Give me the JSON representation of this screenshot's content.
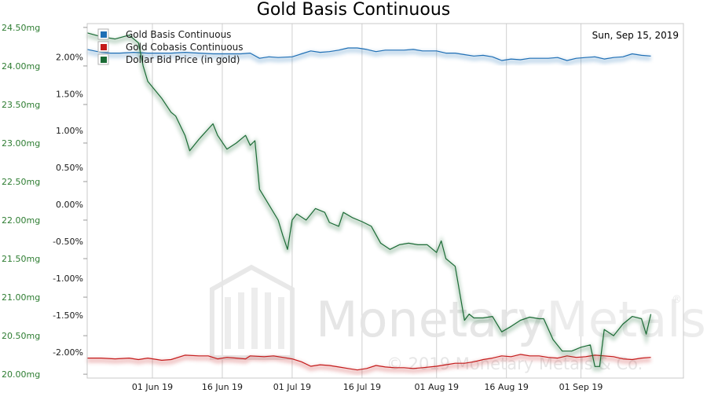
{
  "chart_data": {
    "type": "line",
    "title": "Gold Basis Continuous",
    "date_label": "Sun, Sep 15, 2019",
    "watermark": {
      "brand": "MonetaryMetals",
      "brand_part1": "Monetary",
      "brand_part2": "Metals",
      "registered": "®",
      "copyright": "© 2019 Monetary Metals & Co."
    },
    "x_start": "2019-05-18",
    "x_end": "2019-09-23",
    "x_ticks": [
      {
        "date": "2019-06-01",
        "label": "01 Jun 19"
      },
      {
        "date": "2019-06-16",
        "label": "16 Jun 19"
      },
      {
        "date": "2019-07-01",
        "label": "01 Jul 19"
      },
      {
        "date": "2019-07-16",
        "label": "16 Jul 19"
      },
      {
        "date": "2019-08-01",
        "label": "01 Aug 19"
      },
      {
        "date": "2019-08-16",
        "label": "16 Aug 19"
      },
      {
        "date": "2019-09-01",
        "label": "01 Sep 19"
      }
    ],
    "y_left": {
      "unit": "mg",
      "ylim": [
        19.95,
        24.55
      ],
      "ticks": [
        {
          "value": 20.0,
          "label": "20.00mg"
        },
        {
          "value": 20.5,
          "label": "20.50mg"
        },
        {
          "value": 21.0,
          "label": "21.00mg"
        },
        {
          "value": 21.5,
          "label": "21.50mg"
        },
        {
          "value": 22.0,
          "label": "22.00mg"
        },
        {
          "value": 22.5,
          "label": "22.50mg"
        },
        {
          "value": 23.0,
          "label": "23.00mg"
        },
        {
          "value": 23.5,
          "label": "23.50mg"
        },
        {
          "value": 24.0,
          "label": "24.00mg"
        },
        {
          "value": 24.5,
          "label": "24.50mg"
        }
      ]
    },
    "y_right": {
      "unit": "%",
      "ylim": [
        -2.35,
        2.45
      ],
      "ticks": [
        {
          "value": 2.0,
          "label": "2.00%"
        },
        {
          "value": 1.5,
          "label": "1.50%"
        },
        {
          "value": 1.0,
          "label": "1.00%"
        },
        {
          "value": 0.5,
          "label": "0.50%"
        },
        {
          "value": 0.0,
          "label": "0.00%"
        },
        {
          "value": -0.5,
          "label": "-0.50%"
        },
        {
          "value": -1.0,
          "label": "-1.00%"
        },
        {
          "value": -1.5,
          "label": "-1.50%"
        },
        {
          "value": -2.0,
          "label": "-2.00%"
        }
      ]
    },
    "grid": true,
    "legend_position": "top-left",
    "series": [
      {
        "name": "Gold Basis Continuous",
        "axis": "right",
        "color": "#1f6fb5",
        "points": [
          [
            "2019-05-18",
            2.1
          ],
          [
            "2019-05-21",
            2.06
          ],
          [
            "2019-05-23",
            2.05
          ],
          [
            "2019-05-25",
            2.05
          ],
          [
            "2019-05-28",
            2.06
          ],
          [
            "2019-05-31",
            2.05
          ],
          [
            "2019-06-03",
            2.05
          ],
          [
            "2019-06-05",
            2.05
          ],
          [
            "2019-06-08",
            2.06
          ],
          [
            "2019-06-11",
            2.05
          ],
          [
            "2019-06-14",
            2.04
          ],
          [
            "2019-06-17",
            2.04
          ],
          [
            "2019-06-20",
            2.04
          ],
          [
            "2019-06-22",
            2.05
          ],
          [
            "2019-06-24",
            1.98
          ],
          [
            "2019-06-26",
            2.0
          ],
          [
            "2019-06-28",
            1.99
          ],
          [
            "2019-07-01",
            2.0
          ],
          [
            "2019-07-03",
            2.04
          ],
          [
            "2019-07-05",
            2.08
          ],
          [
            "2019-07-07",
            2.06
          ],
          [
            "2019-07-09",
            2.07
          ],
          [
            "2019-07-11",
            2.09
          ],
          [
            "2019-07-13",
            2.12
          ],
          [
            "2019-07-15",
            2.12
          ],
          [
            "2019-07-17",
            2.1
          ],
          [
            "2019-07-19",
            2.07
          ],
          [
            "2019-07-21",
            2.09
          ],
          [
            "2019-07-23",
            2.09
          ],
          [
            "2019-07-25",
            2.09
          ],
          [
            "2019-07-27",
            2.1
          ],
          [
            "2019-07-29",
            2.08
          ],
          [
            "2019-08-01",
            2.08
          ],
          [
            "2019-08-03",
            2.05
          ],
          [
            "2019-08-05",
            2.05
          ],
          [
            "2019-08-07",
            2.03
          ],
          [
            "2019-08-09",
            2.01
          ],
          [
            "2019-08-11",
            2.02
          ],
          [
            "2019-08-13",
            2.0
          ],
          [
            "2019-08-15",
            1.95
          ],
          [
            "2019-08-17",
            1.97
          ],
          [
            "2019-08-19",
            1.96
          ],
          [
            "2019-08-21",
            1.98
          ],
          [
            "2019-08-23",
            1.98
          ],
          [
            "2019-08-25",
            1.98
          ],
          [
            "2019-08-27",
            1.99
          ],
          [
            "2019-08-29",
            1.95
          ],
          [
            "2019-08-31",
            1.98
          ],
          [
            "2019-09-02",
            1.99
          ],
          [
            "2019-09-04",
            2.0
          ],
          [
            "2019-09-06",
            1.97
          ],
          [
            "2019-09-08",
            1.99
          ],
          [
            "2019-09-10",
            2.0
          ],
          [
            "2019-09-12",
            2.04
          ],
          [
            "2019-09-14",
            2.02
          ],
          [
            "2019-09-16",
            2.01
          ]
        ]
      },
      {
        "name": "Gold Cobasis Continuous",
        "axis": "right",
        "color": "#c41a1a",
        "points": [
          [
            "2019-05-18",
            -2.08
          ],
          [
            "2019-05-21",
            -2.08
          ],
          [
            "2019-05-24",
            -2.09
          ],
          [
            "2019-05-27",
            -2.08
          ],
          [
            "2019-05-29",
            -2.1
          ],
          [
            "2019-05-31",
            -2.08
          ],
          [
            "2019-06-03",
            -2.11
          ],
          [
            "2019-06-05",
            -2.1
          ],
          [
            "2019-06-08",
            -2.04
          ],
          [
            "2019-06-11",
            -2.05
          ],
          [
            "2019-06-13",
            -2.05
          ],
          [
            "2019-06-15",
            -2.09
          ],
          [
            "2019-06-17",
            -2.07
          ],
          [
            "2019-06-19",
            -2.08
          ],
          [
            "2019-06-21",
            -2.09
          ],
          [
            "2019-06-22",
            -2.05
          ],
          [
            "2019-06-25",
            -2.06
          ],
          [
            "2019-06-27",
            -2.05
          ],
          [
            "2019-06-29",
            -2.07
          ],
          [
            "2019-07-01",
            -2.09
          ],
          [
            "2019-07-03",
            -2.13
          ],
          [
            "2019-07-05",
            -2.19
          ],
          [
            "2019-07-07",
            -2.17
          ],
          [
            "2019-07-09",
            -2.18
          ],
          [
            "2019-07-11",
            -2.2
          ],
          [
            "2019-07-13",
            -2.22
          ],
          [
            "2019-07-15",
            -2.24
          ],
          [
            "2019-07-17",
            -2.22
          ],
          [
            "2019-07-19",
            -2.18
          ],
          [
            "2019-07-21",
            -2.2
          ],
          [
            "2019-07-23",
            -2.21
          ],
          [
            "2019-07-25",
            -2.21
          ],
          [
            "2019-07-27",
            -2.22
          ],
          [
            "2019-07-29",
            -2.21
          ],
          [
            "2019-08-01",
            -2.19
          ],
          [
            "2019-08-03",
            -2.17
          ],
          [
            "2019-08-05",
            -2.15
          ],
          [
            "2019-08-07",
            -2.15
          ],
          [
            "2019-08-09",
            -2.13
          ],
          [
            "2019-08-11",
            -2.1
          ],
          [
            "2019-08-13",
            -2.08
          ],
          [
            "2019-08-15",
            -2.05
          ],
          [
            "2019-08-17",
            -2.06
          ],
          [
            "2019-08-19",
            -2.03
          ],
          [
            "2019-08-21",
            -2.05
          ],
          [
            "2019-08-23",
            -2.05
          ],
          [
            "2019-08-25",
            -2.07
          ],
          [
            "2019-08-27",
            -2.08
          ],
          [
            "2019-08-29",
            -2.05
          ],
          [
            "2019-08-31",
            -2.07
          ],
          [
            "2019-09-02",
            -2.06
          ],
          [
            "2019-09-04",
            -2.04
          ],
          [
            "2019-09-06",
            -2.05
          ],
          [
            "2019-09-08",
            -2.06
          ],
          [
            "2019-09-10",
            -2.09
          ],
          [
            "2019-09-12",
            -2.1
          ],
          [
            "2019-09-14",
            -2.08
          ],
          [
            "2019-09-16",
            -2.07
          ]
        ]
      },
      {
        "name": "Dollar Bid Price (in gold)",
        "axis": "left",
        "color": "#1b6b35",
        "points": [
          [
            "2019-05-18",
            24.43
          ],
          [
            "2019-05-21",
            24.38
          ],
          [
            "2019-05-24",
            24.35
          ],
          [
            "2019-05-27",
            24.4
          ],
          [
            "2019-05-29",
            24.3
          ],
          [
            "2019-05-30",
            24.0
          ],
          [
            "2019-05-31",
            23.8
          ],
          [
            "2019-06-03",
            23.58
          ],
          [
            "2019-06-05",
            23.4
          ],
          [
            "2019-06-06",
            23.35
          ],
          [
            "2019-06-08",
            23.1
          ],
          [
            "2019-06-09",
            22.9
          ],
          [
            "2019-06-11",
            23.05
          ],
          [
            "2019-06-14",
            23.25
          ],
          [
            "2019-06-15",
            23.1
          ],
          [
            "2019-06-17",
            22.92
          ],
          [
            "2019-06-19",
            23.0
          ],
          [
            "2019-06-21",
            23.1
          ],
          [
            "2019-06-22",
            22.97
          ],
          [
            "2019-06-23",
            23.03
          ],
          [
            "2019-06-24",
            22.4
          ],
          [
            "2019-06-26",
            22.2
          ],
          [
            "2019-06-28",
            22.0
          ],
          [
            "2019-06-29",
            21.8
          ],
          [
            "2019-06-30",
            21.62
          ],
          [
            "2019-07-01",
            22.0
          ],
          [
            "2019-07-02",
            22.08
          ],
          [
            "2019-07-04",
            22.0
          ],
          [
            "2019-07-06",
            22.15
          ],
          [
            "2019-07-08",
            22.1
          ],
          [
            "2019-07-09",
            21.97
          ],
          [
            "2019-07-11",
            21.92
          ],
          [
            "2019-07-12",
            22.1
          ],
          [
            "2019-07-14",
            22.03
          ],
          [
            "2019-07-16",
            21.98
          ],
          [
            "2019-07-18",
            21.92
          ],
          [
            "2019-07-20",
            21.7
          ],
          [
            "2019-07-22",
            21.62
          ],
          [
            "2019-07-24",
            21.68
          ],
          [
            "2019-07-26",
            21.7
          ],
          [
            "2019-07-28",
            21.68
          ],
          [
            "2019-07-30",
            21.68
          ],
          [
            "2019-08-01",
            21.58
          ],
          [
            "2019-08-02",
            21.73
          ],
          [
            "2019-08-03",
            21.5
          ],
          [
            "2019-08-05",
            21.4
          ],
          [
            "2019-08-07",
            20.7
          ],
          [
            "2019-08-08",
            20.78
          ],
          [
            "2019-08-09",
            20.73
          ],
          [
            "2019-08-11",
            20.73
          ],
          [
            "2019-08-13",
            20.75
          ],
          [
            "2019-08-14",
            20.65
          ],
          [
            "2019-08-15",
            20.55
          ],
          [
            "2019-08-17",
            20.62
          ],
          [
            "2019-08-19",
            20.7
          ],
          [
            "2019-08-21",
            20.74
          ],
          [
            "2019-08-23",
            20.72
          ],
          [
            "2019-08-24",
            20.72
          ],
          [
            "2019-08-26",
            20.45
          ],
          [
            "2019-08-28",
            20.3
          ],
          [
            "2019-08-30",
            20.3
          ],
          [
            "2019-09-01",
            20.35
          ],
          [
            "2019-09-03",
            20.38
          ],
          [
            "2019-09-04",
            20.1
          ],
          [
            "2019-09-05",
            20.1
          ],
          [
            "2019-09-06",
            20.58
          ],
          [
            "2019-09-08",
            20.5
          ],
          [
            "2019-09-10",
            20.65
          ],
          [
            "2019-09-12",
            20.75
          ],
          [
            "2019-09-14",
            20.72
          ],
          [
            "2019-09-15",
            20.52
          ],
          [
            "2019-09-16",
            20.78
          ]
        ]
      }
    ]
  }
}
